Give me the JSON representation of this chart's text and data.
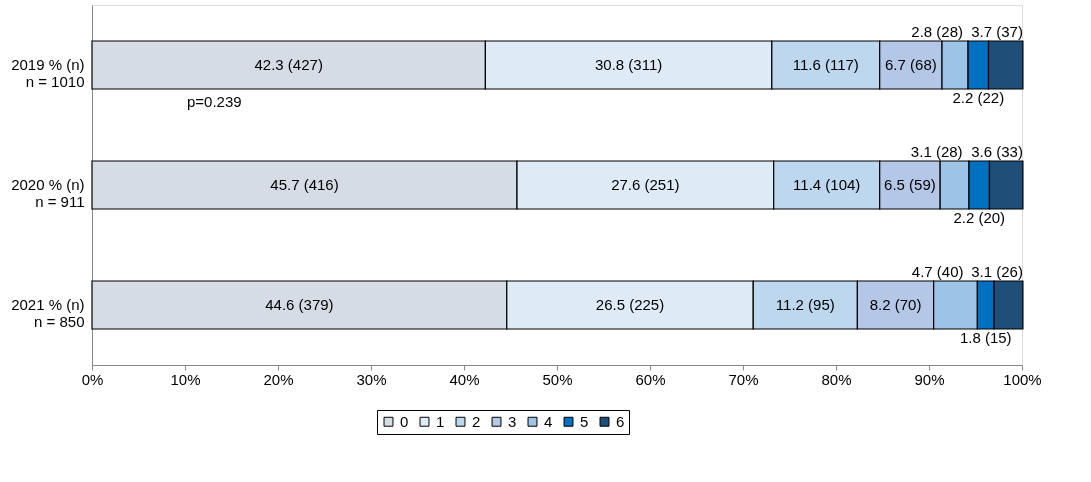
{
  "chart_data": {
    "type": "bar",
    "orientation": "horizontal",
    "stacked": true,
    "categories": [
      "2019 % (n)\nn = 1010",
      "2020 % (n)\nn = 911",
      "2021 % (n)\nn = 850"
    ],
    "series": [
      {
        "name": "0",
        "color": "#d6dce5",
        "values": [
          42.3,
          45.7,
          44.6
        ],
        "value_labels": [
          "42.3 (427)",
          "45.7 (416)",
          "44.6 (379)"
        ]
      },
      {
        "name": "1",
        "color": "#deebf7",
        "values": [
          30.8,
          27.6,
          26.5
        ],
        "value_labels": [
          "30.8 (311)",
          "27.6 (251)",
          "26.5 (225)"
        ]
      },
      {
        "name": "2",
        "color": "#bdd7ee",
        "values": [
          11.6,
          11.4,
          11.2
        ],
        "value_labels": [
          "11.6 (117)",
          "11.4 (104)",
          "11.2 (95)"
        ]
      },
      {
        "name": "3",
        "color": "#b4c7e7",
        "values": [
          6.7,
          6.5,
          8.2
        ],
        "value_labels": [
          "6.7 (68)",
          "6.5 (59)",
          "8.2 (70)"
        ]
      },
      {
        "name": "4",
        "color": "#9dc3e6",
        "values": [
          2.8,
          3.1,
          4.7
        ],
        "value_labels": [
          "2.8 (28)",
          "3.1 (28)",
          "4.7 (40)"
        ]
      },
      {
        "name": "5",
        "color": "#0070c0",
        "values": [
          2.2,
          2.2,
          1.8
        ],
        "value_labels": [
          "2.2 (22)",
          "2.2 (20)",
          "1.8 (15)"
        ]
      },
      {
        "name": "6",
        "color": "#1f4e79",
        "values": [
          3.7,
          3.6,
          3.1
        ],
        "value_labels": [
          "3.7 (37)",
          "3.6 (33)",
          "3.1 (26)"
        ]
      }
    ],
    "xlim": [
      0,
      100
    ],
    "xticks": [
      {
        "value": 0,
        "label": "0%"
      },
      {
        "value": 10,
        "label": "10%"
      },
      {
        "value": 20,
        "label": "20%"
      },
      {
        "value": 30,
        "label": "30%"
      },
      {
        "value": 40,
        "label": "40%"
      },
      {
        "value": 50,
        "label": "50%"
      },
      {
        "value": 60,
        "label": "60%"
      },
      {
        "value": 70,
        "label": "70%"
      },
      {
        "value": 80,
        "label": "80%"
      },
      {
        "value": 90,
        "label": "90%"
      },
      {
        "value": 100,
        "label": "100%"
      }
    ],
    "annotations": [
      "p=0.239"
    ],
    "legend": "bottom",
    "grid": false
  }
}
